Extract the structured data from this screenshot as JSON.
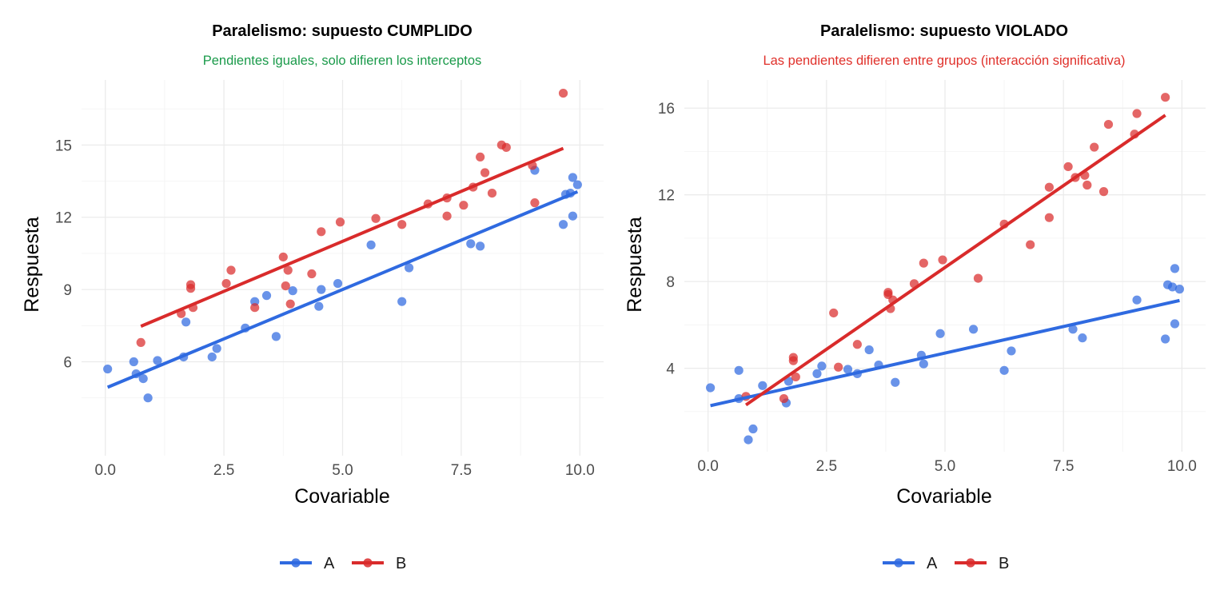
{
  "chart_data": [
    {
      "type": "scatter",
      "title": "Paralelismo: supuesto CUMPLIDO",
      "subtitle": "Pendientes iguales, solo difieren los interceptos",
      "subtitle_color": "#1a9a4a",
      "xlabel": "Covariable",
      "ylabel": "Respuesta",
      "xlim": [
        -0.5,
        10.5
      ],
      "ylim": [
        2.1,
        17.7
      ],
      "x_ticks": [
        0,
        2.5,
        5,
        7.5,
        10
      ],
      "x_tick_labels": [
        "0.0",
        "2.5",
        "5.0",
        "7.5",
        "10.0"
      ],
      "y_ticks": [
        6,
        9,
        12,
        15
      ],
      "y_tick_labels": [
        "6",
        "9",
        "12",
        "15"
      ],
      "grid": true,
      "legend_position": "bottom",
      "series": [
        {
          "name": "A",
          "color": "#2f6ae0",
          "fit": {
            "intercept": 4.9,
            "slope": 0.82
          },
          "points": [
            [
              0.05,
              5.7
            ],
            [
              0.6,
              6.0
            ],
            [
              0.65,
              5.5
            ],
            [
              0.8,
              5.3
            ],
            [
              0.9,
              4.5
            ],
            [
              1.1,
              6.05
            ],
            [
              1.65,
              6.2
            ],
            [
              1.7,
              7.65
            ],
            [
              2.25,
              6.2
            ],
            [
              2.35,
              6.55
            ],
            [
              2.95,
              7.4
            ],
            [
              3.15,
              8.5
            ],
            [
              3.4,
              8.75
            ],
            [
              3.6,
              7.05
            ],
            [
              3.95,
              8.95
            ],
            [
              4.5,
              8.3
            ],
            [
              4.55,
              9.0
            ],
            [
              4.9,
              9.25
            ],
            [
              5.6,
              10.85
            ],
            [
              6.25,
              8.5
            ],
            [
              6.4,
              9.9
            ],
            [
              7.7,
              10.9
            ],
            [
              7.9,
              10.8
            ],
            [
              9.05,
              13.95
            ],
            [
              9.65,
              11.7
            ],
            [
              9.7,
              12.95
            ],
            [
              9.8,
              13.0
            ],
            [
              9.85,
              12.05
            ],
            [
              9.85,
              13.65
            ],
            [
              9.95,
              13.35
            ]
          ]
        },
        {
          "name": "B",
          "color": "#d92b2b",
          "fit": {
            "intercept": 6.85,
            "slope": 0.83
          },
          "points": [
            [
              0.75,
              6.8
            ],
            [
              1.6,
              8.0
            ],
            [
              1.8,
              9.2
            ],
            [
              1.8,
              9.05
            ],
            [
              1.85,
              8.25
            ],
            [
              2.55,
              9.25
            ],
            [
              2.65,
              9.8
            ],
            [
              3.15,
              8.25
            ],
            [
              3.75,
              10.35
            ],
            [
              3.8,
              9.15
            ],
            [
              3.85,
              9.8
            ],
            [
              3.9,
              8.4
            ],
            [
              4.35,
              9.65
            ],
            [
              4.55,
              11.4
            ],
            [
              4.95,
              11.8
            ],
            [
              5.7,
              11.95
            ],
            [
              6.25,
              11.7
            ],
            [
              6.8,
              12.55
            ],
            [
              7.2,
              12.05
            ],
            [
              7.2,
              12.8
            ],
            [
              7.55,
              12.5
            ],
            [
              7.75,
              13.25
            ],
            [
              7.9,
              14.5
            ],
            [
              8.0,
              13.85
            ],
            [
              8.15,
              13.0
            ],
            [
              8.35,
              15.0
            ],
            [
              8.45,
              14.9
            ],
            [
              9.0,
              14.15
            ],
            [
              9.05,
              12.6
            ],
            [
              9.65,
              17.15
            ]
          ]
        }
      ],
      "legend": [
        "A",
        "B"
      ]
    },
    {
      "type": "scatter",
      "title": "Paralelismo: supuesto VIOLADO",
      "subtitle": "Las pendientes difieren entre grupos (interacción significativa)",
      "subtitle_color": "#e0302a",
      "xlabel": "Covariable",
      "ylabel": "Respuesta",
      "xlim": [
        -0.5,
        10.5
      ],
      "ylim": [
        0.15,
        17.3
      ],
      "x_ticks": [
        0,
        2.5,
        5,
        7.5,
        10
      ],
      "x_tick_labels": [
        "0.0",
        "2.5",
        "5.0",
        "7.5",
        "10.0"
      ],
      "y_ticks": [
        4,
        8,
        12,
        16
      ],
      "y_tick_labels": [
        "4",
        "8",
        "12",
        "16"
      ],
      "grid": true,
      "legend_position": "bottom",
      "series": [
        {
          "name": "A",
          "color": "#2f6ae0",
          "fit": {
            "intercept": 2.25,
            "slope": 0.49
          },
          "points": [
            [
              0.05,
              3.1
            ],
            [
              0.65,
              3.9
            ],
            [
              0.65,
              2.6
            ],
            [
              0.85,
              0.7
            ],
            [
              0.95,
              1.2
            ],
            [
              1.15,
              3.2
            ],
            [
              1.65,
              2.4
            ],
            [
              1.7,
              3.4
            ],
            [
              2.3,
              3.75
            ],
            [
              2.4,
              4.1
            ],
            [
              2.95,
              3.95
            ],
            [
              3.15,
              3.75
            ],
            [
              3.4,
              4.85
            ],
            [
              3.6,
              4.15
            ],
            [
              3.95,
              3.35
            ],
            [
              4.5,
              4.6
            ],
            [
              4.55,
              4.2
            ],
            [
              4.9,
              5.6
            ],
            [
              5.6,
              5.8
            ],
            [
              6.25,
              3.9
            ],
            [
              6.4,
              4.8
            ],
            [
              7.7,
              5.8
            ],
            [
              7.9,
              5.4
            ],
            [
              9.05,
              7.15
            ],
            [
              9.65,
              5.35
            ],
            [
              9.7,
              7.85
            ],
            [
              9.8,
              7.75
            ],
            [
              9.85,
              6.05
            ],
            [
              9.85,
              8.6
            ],
            [
              9.95,
              7.65
            ]
          ]
        },
        {
          "name": "B",
          "color": "#d92b2b",
          "fit": {
            "intercept": 1.1,
            "slope": 1.51
          },
          "points": [
            [
              0.8,
              2.7
            ],
            [
              1.6,
              2.6
            ],
            [
              1.8,
              4.5
            ],
            [
              1.8,
              4.35
            ],
            [
              1.85,
              3.6
            ],
            [
              2.65,
              6.55
            ],
            [
              2.75,
              4.05
            ],
            [
              3.15,
              5.1
            ],
            [
              3.8,
              7.5
            ],
            [
              3.8,
              7.4
            ],
            [
              3.85,
              6.75
            ],
            [
              3.9,
              7.15
            ],
            [
              4.35,
              7.9
            ],
            [
              4.55,
              8.85
            ],
            [
              4.95,
              9.0
            ],
            [
              5.7,
              8.15
            ],
            [
              6.25,
              10.65
            ],
            [
              6.8,
              9.7
            ],
            [
              7.2,
              10.95
            ],
            [
              7.2,
              12.35
            ],
            [
              7.6,
              13.3
            ],
            [
              7.75,
              12.8
            ],
            [
              7.95,
              12.9
            ],
            [
              8.0,
              12.45
            ],
            [
              8.15,
              14.2
            ],
            [
              8.35,
              12.15
            ],
            [
              8.45,
              15.25
            ],
            [
              9.0,
              14.8
            ],
            [
              9.05,
              15.75
            ],
            [
              9.65,
              16.5
            ]
          ]
        }
      ],
      "legend": [
        "A",
        "B"
      ]
    }
  ]
}
